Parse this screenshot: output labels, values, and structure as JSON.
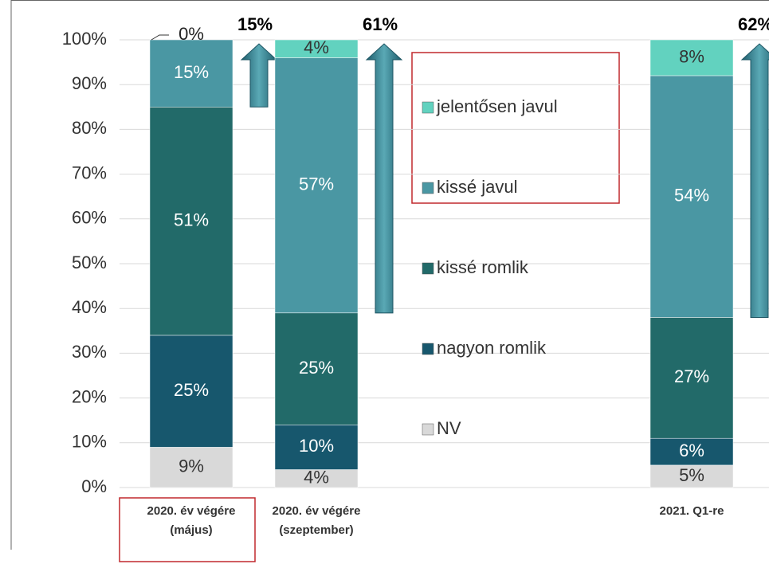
{
  "chart_data": {
    "type": "stacked_bar",
    "categories": [
      "2020. év végére (május)",
      "2020. év végére (szeptember)",
      null,
      null,
      "2021. Q1-re"
    ],
    "series": [
      {
        "name": "NV",
        "color": "#d9d9d9",
        "values": [
          9,
          4,
          null,
          null,
          5
        ],
        "value_labels": [
          "9%",
          "4%",
          null,
          null,
          "5%"
        ]
      },
      {
        "name": "nagyon romlik",
        "color": "#17576d",
        "values": [
          25,
          10,
          null,
          null,
          6
        ],
        "value_labels": [
          "25%",
          "10%",
          null,
          null,
          "6%"
        ]
      },
      {
        "name": "kissé romlik",
        "color": "#226a69",
        "values": [
          51,
          25,
          null,
          null,
          27
        ],
        "value_labels": [
          "51%",
          "25%",
          null,
          null,
          "27%"
        ]
      },
      {
        "name": "kissé javul",
        "color": "#4a97a3",
        "values": [
          15,
          57,
          null,
          null,
          54
        ],
        "value_labels": [
          "15%",
          "57%",
          null,
          null,
          "54%"
        ]
      },
      {
        "name": "jelentősen javul",
        "color": "#62d2bf",
        "values": [
          0,
          4,
          null,
          null,
          8
        ],
        "value_labels": [
          "0%",
          "4%",
          null,
          null,
          "8%"
        ]
      }
    ],
    "annotations": [
      "15%",
      "61%",
      null,
      null,
      "62%"
    ],
    "ylim": [
      0,
      100
    ],
    "yticks": [
      {
        "value": 0,
        "label": "0%"
      },
      {
        "value": 10,
        "label": "10%"
      },
      {
        "value": 20,
        "label": "20%"
      },
      {
        "value": 30,
        "label": "30%"
      },
      {
        "value": 40,
        "label": "40%"
      },
      {
        "value": 50,
        "label": "50%"
      },
      {
        "value": 60,
        "label": "60%"
      },
      {
        "value": 70,
        "label": "70%"
      },
      {
        "value": 80,
        "label": "80%"
      },
      {
        "value": 90,
        "label": "90%"
      },
      {
        "value": 100,
        "label": "100%"
      }
    ],
    "grid": true
  }
}
